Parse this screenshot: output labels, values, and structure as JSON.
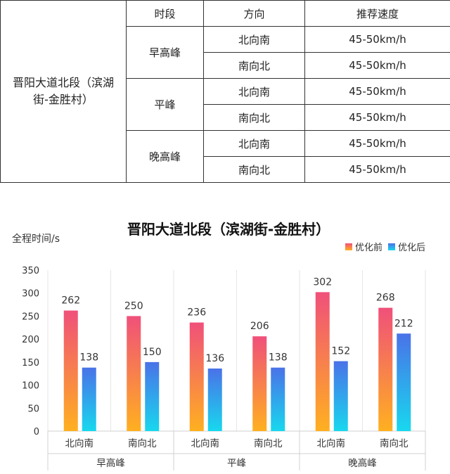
{
  "table": {
    "road": "晋阳大道北段（滨湖街-金胜村）",
    "road_lines": [
      "晋阳大道北段（滨湖",
      "街-金胜村）"
    ],
    "headers": [
      "时段",
      "方向",
      "推荐速度"
    ],
    "groups": [
      {
        "period": "早高峰",
        "rows": [
          {
            "direction": "北向南",
            "speed": "45-50km/h"
          },
          {
            "direction": "南向北",
            "speed": "45-50km/h"
          }
        ]
      },
      {
        "period": "平峰",
        "rows": [
          {
            "direction": "北向南",
            "speed": "45-50km/h"
          },
          {
            "direction": "南向北",
            "speed": "45-50km/h"
          }
        ]
      },
      {
        "period": "晚高峰",
        "rows": [
          {
            "direction": "北向南",
            "speed": "45-50km/h"
          },
          {
            "direction": "南向北",
            "speed": "45-50km/h"
          }
        ]
      }
    ]
  },
  "chart_data": {
    "type": "bar",
    "title": "晋阳大道北段（滨湖街-金胜村）",
    "ylabel": "全程时间/s",
    "xlabel": "",
    "ylim": [
      0,
      350
    ],
    "yticks": [
      0,
      50,
      100,
      150,
      200,
      250,
      300,
      350
    ],
    "grid": false,
    "legend_position": "top-right",
    "groups": [
      "早高峰",
      "平峰",
      "晚高峰"
    ],
    "categories": [
      "北向南",
      "南向北",
      "北向南",
      "南向北",
      "北向南",
      "南向北"
    ],
    "series": [
      {
        "name": "优化前",
        "values": [
          262,
          250,
          236,
          206,
          302,
          268
        ],
        "color_top": "#f0507a",
        "color_bottom": "#ffb020"
      },
      {
        "name": "优化后",
        "values": [
          138,
          150,
          136,
          138,
          152,
          212
        ],
        "color_top": "#4a72e8",
        "color_bottom": "#18d8ee"
      }
    ]
  }
}
